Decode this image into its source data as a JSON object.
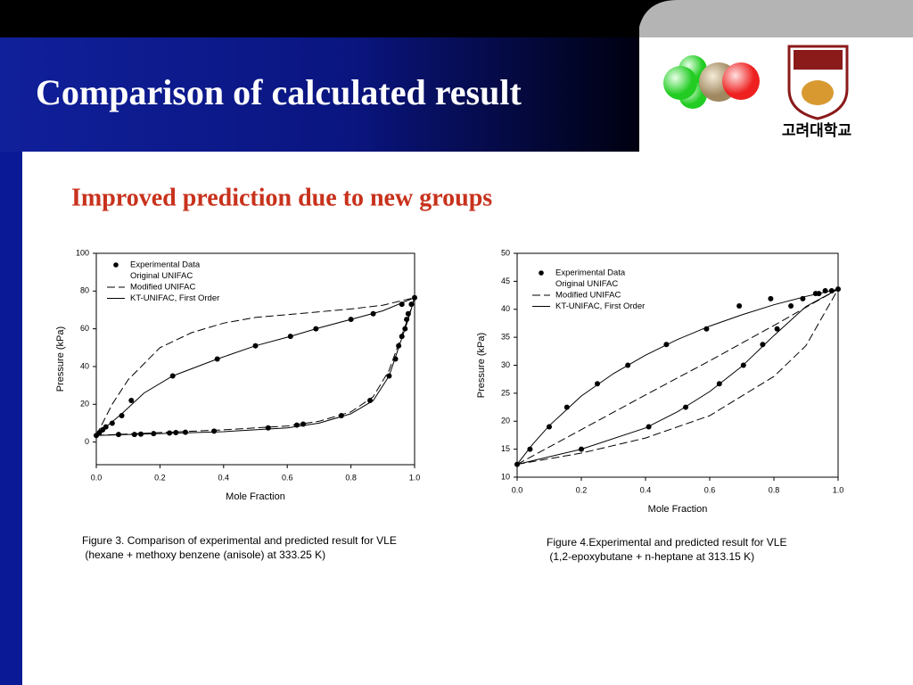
{
  "slide": {
    "title": "Comparison of calculated result",
    "subtitle": "Improved prediction due to new groups",
    "logo_text": "고려대학교"
  },
  "chart_data": [
    {
      "type": "line",
      "xlabel": "Mole Fraction",
      "ylabel": "Pressure (kPa)",
      "caption": [
        "Figure 3. Comparison of experimental and predicted result for VLE",
        " (hexane + methoxy benzene (anisole) at 333.25 K)"
      ],
      "xlim": [
        0,
        1
      ],
      "ylim": [
        -12,
        100
      ],
      "xticks": [
        {
          "value": 0,
          "label": "0.0"
        },
        0.2,
        0.4,
        0.6,
        0.8,
        {
          "value": 1,
          "label": "1.0"
        }
      ],
      "yticks": [
        0,
        20,
        40,
        60,
        80,
        100
      ],
      "series": [
        {
          "name": "Experimental Data",
          "style": "dots",
          "color": "#000000",
          "x": [
            0,
            0.01,
            0.02,
            0.03,
            0.05,
            0.08,
            0.11,
            0.24,
            0.38,
            0.5,
            0.61,
            0.69,
            0.8,
            0.87,
            0.96,
            1.0,
            0.07,
            0.12,
            0.14,
            0.18,
            0.23,
            0.25,
            0.28,
            0.37,
            0.54,
            0.63,
            0.65,
            0.77,
            0.86,
            0.92,
            0.94,
            0.95,
            0.96,
            0.97,
            0.975,
            0.98,
            0.99
          ],
          "values": [
            3.5,
            5,
            6.5,
            8,
            10,
            14,
            22,
            35,
            44,
            51,
            56,
            60,
            65,
            68,
            73,
            76.5,
            4,
            4,
            4.2,
            4.5,
            4.8,
            5,
            5.2,
            5.8,
            7.5,
            9,
            9.5,
            14,
            22,
            35,
            44,
            51,
            56,
            60,
            65,
            68,
            73
          ]
        },
        {
          "name": "Original UNIFAC",
          "style": "none",
          "color": "#000000",
          "x": [],
          "values": []
        },
        {
          "name": "Modified UNIFAC",
          "style": "dashed",
          "color": "#000000",
          "x": [
            0,
            0.05,
            0.1,
            0.2,
            0.3,
            0.4,
            0.5,
            0.6,
            0.7,
            0.8,
            0.9,
            1.0,
            null,
            0,
            0.2,
            0.4,
            0.6,
            0.7,
            0.8,
            0.87,
            0.92,
            0.95,
            0.98,
            1.0
          ],
          "values": [
            3.5,
            20,
            33,
            50,
            58,
            63,
            66,
            67.5,
            69,
            70.5,
            72.5,
            76.5,
            null,
            3.5,
            5,
            6.5,
            8.5,
            11,
            16,
            24,
            38,
            52,
            66,
            76.5
          ]
        },
        {
          "name": "KT-UNIFAC, First Order",
          "style": "solid",
          "color": "#000000",
          "x": [
            0,
            0.03,
            0.08,
            0.15,
            0.24,
            0.38,
            0.5,
            0.61,
            0.7,
            0.8,
            0.9,
            1.0,
            null,
            0,
            0.2,
            0.4,
            0.6,
            0.7,
            0.8,
            0.87,
            0.92,
            0.95,
            0.98,
            1.0
          ],
          "values": [
            3.5,
            8,
            15,
            26,
            35,
            44,
            51,
            56,
            60.5,
            65,
            69.5,
            76.5,
            null,
            3.5,
            4.5,
            5.5,
            7.5,
            10,
            15,
            22,
            35,
            50,
            65,
            76.5
          ]
        }
      ]
    },
    {
      "type": "line",
      "xlabel": "Mole Fraction",
      "ylabel": "Pressure (kPa)",
      "caption": [
        "Figure 4.Experimental and predicted result for VLE",
        " (1,2-epoxybutane + n-heptane at 313.15 K)"
      ],
      "xlim": [
        0,
        1
      ],
      "ylim": [
        10,
        50
      ],
      "xticks": [
        {
          "value": 0,
          "label": "0.0"
        },
        0.2,
        0.4,
        0.6,
        0.8,
        {
          "value": 1,
          "label": "1.0"
        }
      ],
      "yticks": [
        10,
        15,
        20,
        25,
        30,
        35,
        40,
        45,
        50
      ],
      "series": [
        {
          "name": "Experimental Data",
          "style": "dots",
          "color": "#000000",
          "x": [
            0,
            0.04,
            0.1,
            0.155,
            0.25,
            0.345,
            0.465,
            0.59,
            0.692,
            0.79,
            0.93,
            0.94,
            0.96,
            0.98,
            1.0,
            0.2,
            0.41,
            0.525,
            0.63,
            0.705,
            0.765,
            0.81,
            0.853,
            0.89
          ],
          "values": [
            12.3,
            15,
            19,
            22.5,
            26.7,
            30,
            33.7,
            36.5,
            40.6,
            41.9,
            42.8,
            42.8,
            43.3,
            43.3,
            43.6,
            15,
            19,
            22.5,
            26.7,
            30,
            33.7,
            36.5,
            40.6,
            41.9
          ]
        },
        {
          "name": "Original UNIFAC",
          "style": "none",
          "color": "#000000",
          "x": [],
          "values": []
        },
        {
          "name": "Modified UNIFAC",
          "style": "dashed",
          "color": "#000000",
          "x": [
            0,
            0.2,
            0.4,
            0.6,
            0.8,
            1.0,
            null,
            0,
            0.2,
            0.4,
            0.6,
            0.8,
            0.9,
            1.0
          ],
          "values": [
            12.3,
            18.5,
            24.7,
            30.8,
            37.1,
            43.6,
            null,
            12.3,
            14.3,
            17,
            21,
            28,
            33.5,
            43.6
          ]
        },
        {
          "name": "KT-UNIFAC, First Order",
          "style": "solid",
          "color": "#000000",
          "x": [
            0,
            0.05,
            0.1,
            0.2,
            0.3,
            0.4,
            0.5,
            0.6,
            0.7,
            0.8,
            0.9,
            1.0,
            null,
            0,
            0.2,
            0.4,
            0.5,
            0.6,
            0.7,
            0.8,
            0.9,
            1.0
          ],
          "values": [
            12.3,
            16,
            19.2,
            24.5,
            28.5,
            31.8,
            34.6,
            37,
            39,
            40.8,
            42.3,
            43.6,
            null,
            12.3,
            15,
            18.8,
            21.7,
            25.3,
            29.8,
            35.3,
            40.5,
            43.6
          ]
        }
      ]
    }
  ]
}
